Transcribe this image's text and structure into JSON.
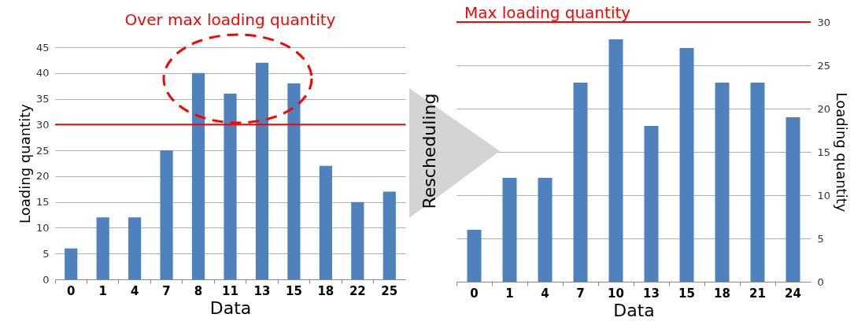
{
  "chart_data": [
    {
      "type": "bar",
      "categories": [
        "0",
        "1",
        "4",
        "7",
        "8",
        "11",
        "13",
        "15",
        "18",
        "22",
        "25"
      ],
      "values": [
        6,
        12,
        12,
        25,
        40,
        36,
        42,
        38,
        22,
        15,
        17
      ],
      "color": "#4f81bd",
      "xlabel": "Data",
      "ylabel": "Loading quantity",
      "ylim": [
        0,
        45
      ],
      "yticks": [
        0,
        5,
        10,
        15,
        20,
        25,
        30,
        35,
        40,
        45
      ],
      "grid": "y",
      "ref_lines": [
        {
          "axis": "y",
          "value": 30,
          "color": "#ff0000"
        }
      ],
      "annotations": [
        "Over max loading quantity"
      ]
    },
    {
      "type": "bar",
      "categories": [
        "0",
        "1",
        "4",
        "7",
        "10",
        "13",
        "15",
        "18",
        "21",
        "24"
      ],
      "values": [
        6,
        12,
        12,
        23,
        28,
        18,
        27,
        23,
        23,
        19
      ],
      "color": "#4f81bd",
      "xlabel": "Data",
      "ylabel": "Loading quantity",
      "ylim": [
        0,
        30
      ],
      "yticks": [
        0,
        5,
        10,
        15,
        20,
        25,
        30
      ],
      "grid": "y",
      "ref_lines": [
        {
          "axis": "y",
          "value": 30,
          "label": "Max loading quantity",
          "color": "#ff0000"
        }
      ],
      "annotations": [
        "Rescheduling"
      ]
    }
  ]
}
